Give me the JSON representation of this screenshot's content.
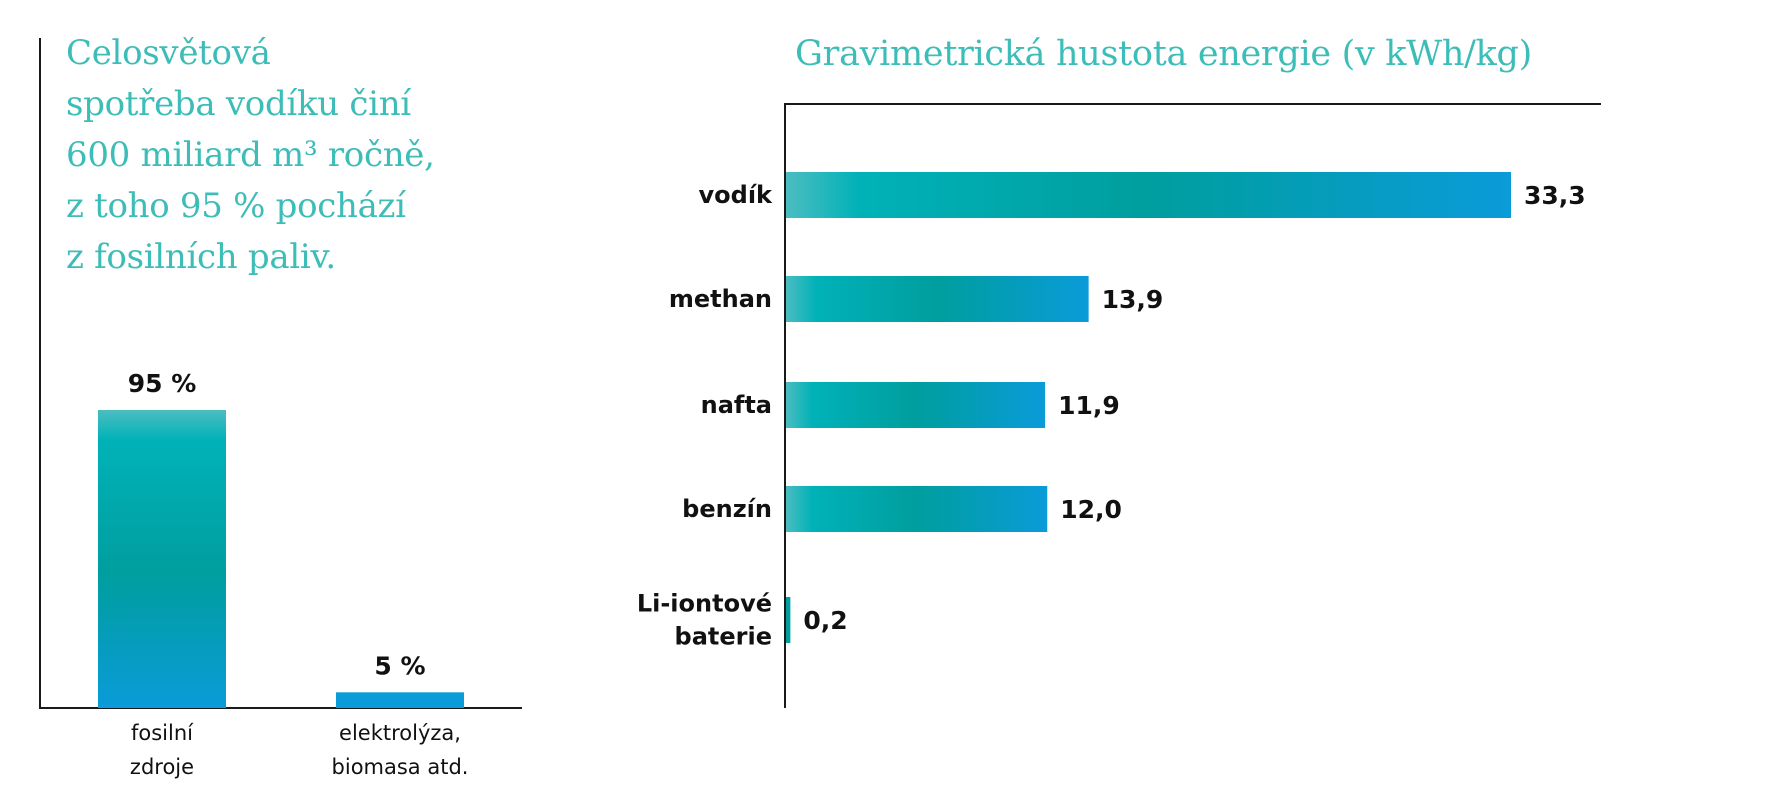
{
  "headline": {
    "lines": [
      "Celosvětová",
      "spotřeba vodíku činí",
      "600 miliard m³ ročně,",
      "z toho 95 % pochází",
      "z fosilních paliv."
    ]
  },
  "colors": {
    "accent_text": "#3dbdb8",
    "bar_teal_light": "#4bbdc1",
    "bar_teal": "#00b2b8",
    "bar_teal_dark": "#009e9e",
    "bar_blue": "#0a9bd9",
    "axis": "#1a1a1a"
  },
  "chart_data": [
    {
      "type": "bar",
      "orientation": "vertical",
      "categories": [
        [
          "fosilní",
          "zdroje"
        ],
        [
          "elektrolýza,",
          "biomasa atd."
        ]
      ],
      "values": [
        95,
        5
      ],
      "value_labels": [
        "95 %",
        "5 %"
      ],
      "ylim": [
        0,
        100
      ],
      "grid": false
    },
    {
      "type": "bar",
      "orientation": "horizontal",
      "title": "Gravimetrická hustota energie (v kWh/kg)",
      "categories": [
        [
          "vodík"
        ],
        [
          "methan"
        ],
        [
          "nafta"
        ],
        [
          "benzín"
        ],
        [
          "Li-iontové",
          "baterie"
        ]
      ],
      "values": [
        33.3,
        13.9,
        11.9,
        12.0,
        0.2
      ],
      "value_labels": [
        "33,3",
        "13,9",
        "11,9",
        "12,0",
        "0,2"
      ],
      "xlim": [
        0,
        37.5
      ],
      "grid": false
    }
  ]
}
